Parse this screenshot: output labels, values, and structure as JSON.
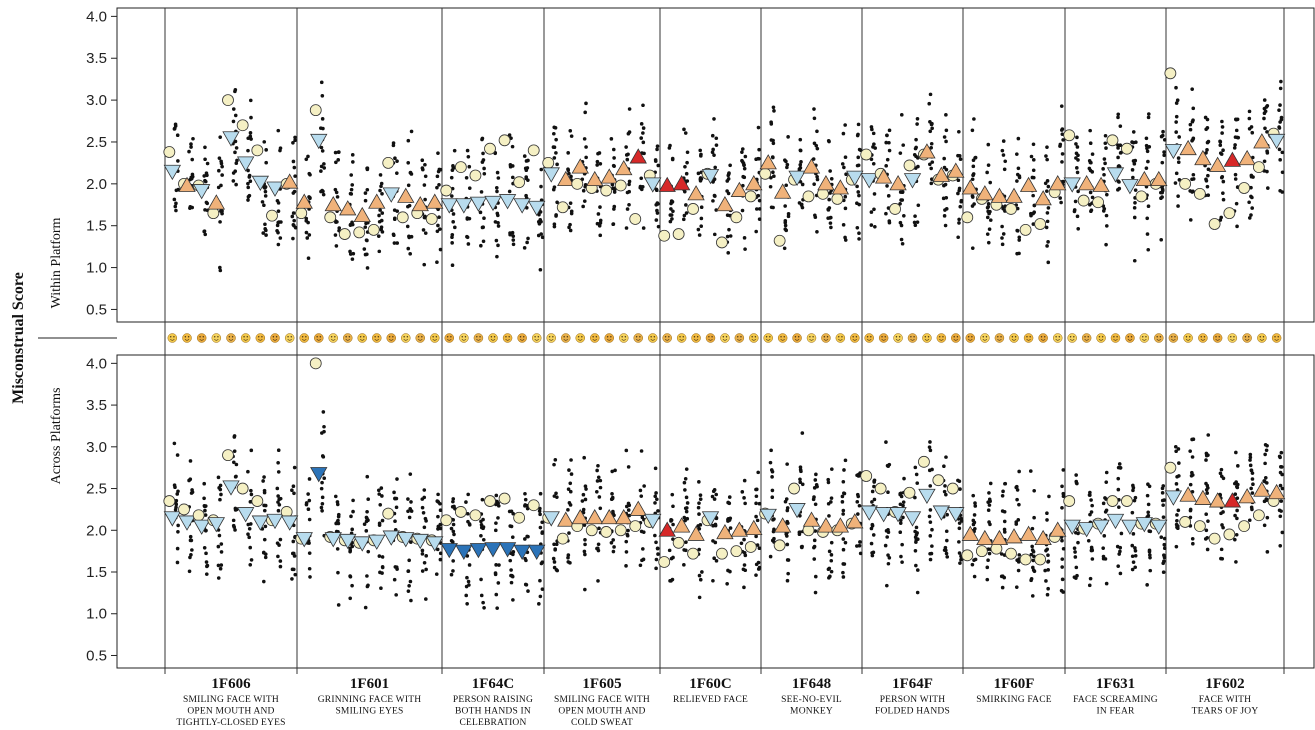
{
  "chart_data": {
    "type": "scatter",
    "ylabel": "Misconstrual Score",
    "panels": [
      {
        "label": "Within Platform",
        "ylim": [
          0.35,
          4.1
        ],
        "yticks": [
          "0.5",
          "1.0",
          "1.5",
          "2.0",
          "2.5",
          "3.0",
          "3.5",
          "4.0"
        ]
      },
      {
        "label": "Across Platforms",
        "ylim": [
          0.35,
          4.1
        ],
        "yticks": [
          "0.5",
          "1.0",
          "1.5",
          "2.0",
          "2.5",
          "3.0",
          "3.5",
          "4.0"
        ]
      }
    ],
    "legend": [],
    "colors": {
      "circle": "#f5f0c4",
      "tri_up": "#f0b27a",
      "tri_up_highlight": "#d62828",
      "tri_down": "#b8dcee",
      "tri_down_highlight": "#2b73b8",
      "dot": "#111111"
    },
    "categories": [
      {
        "code": "1F606",
        "name": [
          "SMILING FACE WITH",
          "OPEN MOUTH AND",
          "TIGHTLY-CLOSED EYES"
        ],
        "within": [
          [
            2.38,
            "d",
            2.15
          ],
          [
            2.0,
            "u",
            1.98
          ],
          [
            1.98,
            "d",
            1.92
          ],
          [
            1.65,
            "u",
            1.77
          ],
          [
            3.0,
            "d",
            2.55
          ],
          [
            2.7,
            "d",
            2.25
          ],
          [
            2.4,
            "d",
            2.02
          ],
          [
            1.62,
            "d",
            1.95
          ],
          [
            2.0,
            "u",
            2.02
          ]
        ],
        "across": [
          [
            2.35,
            "d",
            2.15
          ],
          [
            2.25,
            "d",
            2.1
          ],
          [
            2.18,
            "d",
            2.05
          ],
          [
            2.12,
            "d",
            2.08
          ],
          [
            2.9,
            "d",
            2.52
          ],
          [
            2.5,
            "d",
            2.2
          ],
          [
            2.35,
            "d",
            2.1
          ],
          [
            2.12,
            "d",
            2.12
          ],
          [
            2.22,
            "d",
            2.1
          ]
        ]
      },
      {
        "code": "1F601",
        "name": [
          "GRINNING FACE WITH",
          "SMILING EYES"
        ],
        "within": [
          [
            1.65,
            "u",
            1.78
          ],
          [
            2.88,
            "d",
            2.52
          ],
          [
            1.6,
            "u",
            1.75
          ],
          [
            1.4,
            "u",
            1.7
          ],
          [
            1.42,
            "u",
            1.62
          ],
          [
            1.45,
            "u",
            1.78
          ],
          [
            2.25,
            "d",
            1.88
          ],
          [
            1.6,
            "u",
            1.85
          ],
          [
            1.65,
            "u",
            1.75
          ],
          [
            1.58,
            "u",
            1.78
          ]
        ],
        "across": [
          [
            1.9,
            "d",
            1.9
          ],
          [
            4.0,
            "D",
            2.68
          ],
          [
            1.92,
            "d",
            1.9
          ],
          [
            1.88,
            "d",
            1.88
          ],
          [
            1.85,
            "d",
            1.85
          ],
          [
            1.88,
            "d",
            1.87
          ],
          [
            2.2,
            "d",
            1.92
          ],
          [
            1.92,
            "d",
            1.9
          ],
          [
            1.9,
            "d",
            1.88
          ],
          [
            1.88,
            "d",
            1.85
          ]
        ]
      },
      {
        "code": "1F64C",
        "name": [
          "PERSON RAISING",
          "BOTH HANDS IN",
          "CELEBRATION"
        ],
        "within": [
          [
            1.92,
            "d",
            1.75
          ],
          [
            2.2,
            "d",
            1.75
          ],
          [
            2.1,
            "d",
            1.77
          ],
          [
            2.42,
            "d",
            1.78
          ],
          [
            2.52,
            "d",
            1.8
          ],
          [
            2.02,
            "d",
            1.75
          ],
          [
            2.4,
            "d",
            1.72
          ]
        ],
        "across": [
          [
            2.12,
            "D",
            1.77
          ],
          [
            2.22,
            "D",
            1.75
          ],
          [
            2.18,
            "D",
            1.77
          ],
          [
            2.35,
            "D",
            1.78
          ],
          [
            2.38,
            "D",
            1.78
          ],
          [
            2.15,
            "D",
            1.75
          ],
          [
            2.3,
            "D",
            1.75
          ]
        ]
      },
      {
        "code": "1F605",
        "name": [
          "SMILING FACE WITH",
          "OPEN MOUTH AND",
          "COLD SWEAT"
        ],
        "within": [
          [
            2.25,
            "d",
            2.12
          ],
          [
            1.72,
            "u",
            2.05
          ],
          [
            2.0,
            "u",
            2.2
          ],
          [
            1.95,
            "u",
            2.05
          ],
          [
            1.92,
            "u",
            2.08
          ],
          [
            1.98,
            "u",
            2.18
          ],
          [
            1.58,
            "U",
            2.32
          ],
          [
            2.1,
            "d",
            2.0
          ]
        ],
        "across": [
          [
            2.15,
            "d",
            2.15
          ],
          [
            1.9,
            "u",
            2.12
          ],
          [
            2.05,
            "u",
            2.15
          ],
          [
            2.0,
            "u",
            2.15
          ],
          [
            1.98,
            "u",
            2.15
          ],
          [
            2.0,
            "u",
            2.15
          ],
          [
            2.05,
            "u",
            2.25
          ],
          [
            2.1,
            "d",
            2.12
          ]
        ]
      },
      {
        "code": "1F60C",
        "name": [
          "RELIEVED FACE"
        ],
        "within": [
          [
            1.38,
            "U",
            1.98
          ],
          [
            1.4,
            "U",
            2.0
          ],
          [
            1.7,
            "u",
            1.88
          ],
          [
            2.12,
            "d",
            2.1
          ],
          [
            1.3,
            "u",
            1.75
          ],
          [
            1.6,
            "u",
            1.92
          ],
          [
            1.85,
            "u",
            2.0
          ]
        ],
        "across": [
          [
            1.62,
            "U",
            2.0
          ],
          [
            1.85,
            "u",
            2.05
          ],
          [
            1.72,
            "u",
            1.95
          ],
          [
            2.12,
            "d",
            2.15
          ],
          [
            1.72,
            "u",
            1.97
          ],
          [
            1.75,
            "u",
            2.0
          ],
          [
            1.8,
            "u",
            2.02
          ]
        ]
      },
      {
        "code": "1F648",
        "name": [
          "SEE-NO-EVIL",
          "MONKEY"
        ],
        "within": [
          [
            2.12,
            "u",
            2.25
          ],
          [
            1.32,
            "u",
            1.9
          ],
          [
            2.05,
            "d",
            2.08
          ],
          [
            1.85,
            "u",
            2.2
          ],
          [
            1.88,
            "u",
            2.0
          ],
          [
            1.82,
            "u",
            1.95
          ],
          [
            2.05,
            "d",
            2.08
          ]
        ],
        "across": [
          [
            2.2,
            "d",
            2.18
          ],
          [
            1.82,
            "u",
            2.05
          ],
          [
            2.5,
            "d",
            2.25
          ],
          [
            2.0,
            "u",
            2.12
          ],
          [
            1.98,
            "u",
            2.05
          ],
          [
            2.0,
            "u",
            2.05
          ],
          [
            2.08,
            "u",
            2.1
          ]
        ]
      },
      {
        "code": "1F64F",
        "name": [
          "PERSON WITH",
          "FOLDED HANDS"
        ],
        "within": [
          [
            2.35,
            "d",
            2.05
          ],
          [
            2.12,
            "u",
            2.08
          ],
          [
            1.7,
            "u",
            2.0
          ],
          [
            2.22,
            "d",
            2.05
          ],
          [
            2.35,
            "u",
            2.38
          ],
          [
            2.05,
            "u",
            2.1
          ],
          [
            2.1,
            "u",
            2.15
          ]
        ],
        "across": [
          [
            2.65,
            "d",
            2.22
          ],
          [
            2.5,
            "d",
            2.2
          ],
          [
            2.22,
            "d",
            2.2
          ],
          [
            2.45,
            "d",
            2.15
          ],
          [
            2.82,
            "d",
            2.42
          ],
          [
            2.6,
            "d",
            2.22
          ],
          [
            2.5,
            "d",
            2.2
          ]
        ]
      },
      {
        "code": "1F60F",
        "name": [
          "SMIRKING FACE"
        ],
        "within": [
          [
            1.6,
            "u",
            1.95
          ],
          [
            1.82,
            "u",
            1.88
          ],
          [
            1.75,
            "u",
            1.85
          ],
          [
            1.7,
            "u",
            1.85
          ],
          [
            1.45,
            "u",
            1.98
          ],
          [
            1.52,
            "u",
            1.82
          ],
          [
            1.9,
            "u",
            2.0
          ]
        ],
        "across": [
          [
            1.7,
            "u",
            1.95
          ],
          [
            1.75,
            "u",
            1.9
          ],
          [
            1.78,
            "u",
            1.9
          ],
          [
            1.72,
            "u",
            1.92
          ],
          [
            1.65,
            "u",
            1.95
          ],
          [
            1.65,
            "u",
            1.9
          ],
          [
            1.92,
            "u",
            2.0
          ]
        ]
      },
      {
        "code": "1F631",
        "name": [
          "FACE SCREAMING",
          "IN FEAR"
        ],
        "within": [
          [
            2.58,
            "d",
            2.0
          ],
          [
            1.8,
            "u",
            2.0
          ],
          [
            1.78,
            "u",
            1.98
          ],
          [
            2.52,
            "d",
            2.12
          ],
          [
            2.42,
            "d",
            1.98
          ],
          [
            1.85,
            "u",
            2.05
          ],
          [
            2.0,
            "u",
            2.05
          ]
        ],
        "across": [
          [
            2.35,
            "d",
            2.05
          ],
          [
            2.02,
            "d",
            2.02
          ],
          [
            2.08,
            "d",
            2.05
          ],
          [
            2.35,
            "d",
            2.12
          ],
          [
            2.35,
            "d",
            2.05
          ],
          [
            2.08,
            "d",
            2.08
          ],
          [
            2.08,
            "d",
            2.05
          ]
        ]
      },
      {
        "code": "1F602",
        "name": [
          "FACE WITH",
          "TEARS OF JOY"
        ],
        "within": [
          [
            3.32,
            "d",
            2.4
          ],
          [
            2.0,
            "u",
            2.42
          ],
          [
            1.88,
            "u",
            2.3
          ],
          [
            1.52,
            "u",
            2.22
          ],
          [
            1.65,
            "U",
            2.28
          ],
          [
            1.95,
            "u",
            2.3
          ],
          [
            2.2,
            "u",
            2.5
          ],
          [
            2.6,
            "d",
            2.52
          ]
        ],
        "across": [
          [
            2.75,
            "d",
            2.4
          ],
          [
            2.1,
            "u",
            2.42
          ],
          [
            2.05,
            "u",
            2.38
          ],
          [
            1.9,
            "u",
            2.35
          ],
          [
            1.95,
            "U",
            2.35
          ],
          [
            2.05,
            "u",
            2.4
          ],
          [
            2.18,
            "u",
            2.48
          ],
          [
            2.35,
            "u",
            2.45
          ]
        ]
      }
    ]
  }
}
